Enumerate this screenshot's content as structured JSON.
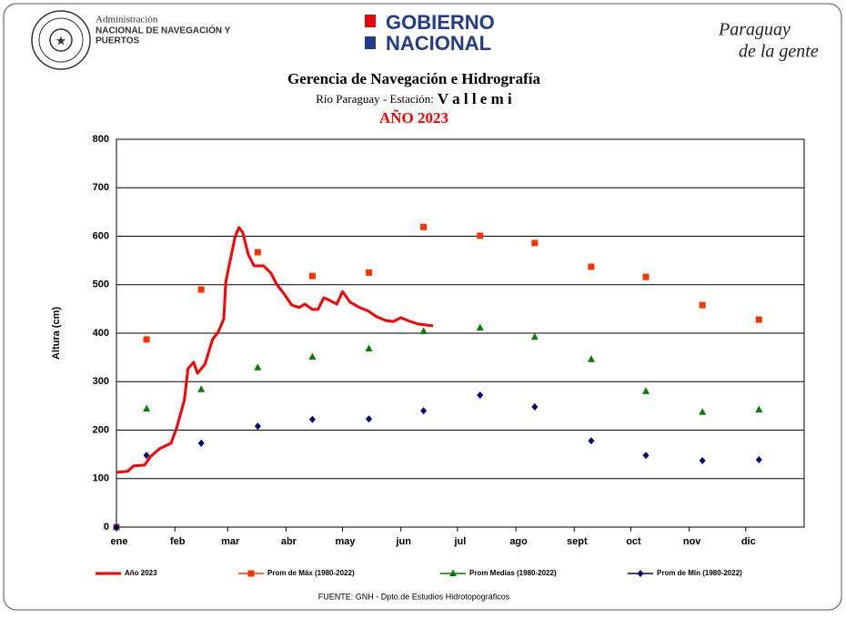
{
  "header": {
    "agency_line1": "Administración",
    "agency_line2": "NACIONAL DE NAVEGACIÓN Y",
    "agency_line3": "PUERTOS",
    "gov_line1": "GOBIERNO",
    "gov_line2": "NACIONAL",
    "slogan_line1": "Paraguay",
    "slogan_line2": "de la gente"
  },
  "chart_data": {
    "type": "line",
    "title": "Gerencia de Navegación e Hidrografía",
    "subtitle_prefix": "Río Paraguay  -  Estación:",
    "subtitle_station": "V a l l e m i",
    "year_title": "AÑO 2023",
    "y_label": "Altura (cm)",
    "source": "FUENTE: GNH - Dpto.de Estudios Hidrotopográficos",
    "xlim": [
      0,
      365
    ],
    "ylim": [
      0,
      800
    ],
    "xticks": [
      {
        "value": 0,
        "label": "ene"
      },
      {
        "value": 31,
        "label": "feb"
      },
      {
        "value": 59,
        "label": "mar"
      },
      {
        "value": 90,
        "label": "abr"
      },
      {
        "value": 120,
        "label": "may"
      },
      {
        "value": 151,
        "label": "jun"
      },
      {
        "value": 181,
        "label": "jul"
      },
      {
        "value": 212,
        "label": "ago"
      },
      {
        "value": 243,
        "label": "sept"
      },
      {
        "value": 273,
        "label": "oct"
      },
      {
        "value": 304,
        "label": "nov"
      },
      {
        "value": 334,
        "label": "dic"
      }
    ],
    "yticks": [
      0,
      100,
      200,
      300,
      400,
      500,
      600,
      700,
      800
    ],
    "grid": true,
    "series": [
      {
        "name": "Año 2023",
        "color": "#ff0000",
        "mode": "line",
        "x": [
          0,
          6,
          9,
          15,
          18,
          23,
          29,
          32,
          36,
          38,
          41,
          43,
          47,
          51,
          54,
          57,
          58,
          60,
          63,
          65,
          67,
          70,
          73,
          78,
          82,
          85,
          89,
          93,
          97,
          100,
          104,
          107,
          110,
          113,
          117,
          120,
          124,
          129,
          134,
          138,
          143,
          147,
          151,
          156,
          160,
          168
        ],
        "values": [
          113,
          115,
          126,
          128,
          145,
          162,
          173,
          205,
          261,
          327,
          340,
          317,
          336,
          387,
          402,
          430,
          505,
          543,
          599,
          618,
          608,
          562,
          539,
          539,
          524,
          501,
          481,
          458,
          453,
          460,
          449,
          449,
          473,
          468,
          460,
          486,
          464,
          453,
          445,
          434,
          426,
          424,
          432,
          424,
          419,
          415
        ]
      },
      {
        "name": "Prom de Máx (1980-2022)",
        "color": "#ff3300",
        "mode": "markers",
        "marker": "square",
        "x": [
          0,
          16,
          45,
          75,
          104,
          134,
          163,
          193,
          222,
          252,
          281,
          311,
          341
        ],
        "values": [
          0,
          387,
          490,
          567,
          518,
          525,
          619,
          601,
          586,
          537,
          516,
          458,
          428
        ]
      },
      {
        "name": "Prom Medias (1980-2022)",
        "color": "#008000",
        "mode": "markers",
        "marker": "triangle",
        "x": [
          0,
          16,
          45,
          75,
          104,
          134,
          163,
          193,
          222,
          252,
          281,
          311,
          341
        ],
        "values": [
          0,
          244,
          284,
          329,
          351,
          368,
          404,
          411,
          392,
          346,
          280,
          237,
          242
        ]
      },
      {
        "name": "Prom de Mín  (1980-2022)",
        "color": "#000080",
        "mode": "markers",
        "marker": "diamond",
        "x": [
          0,
          16,
          45,
          75,
          104,
          134,
          163,
          193,
          222,
          252,
          281,
          311,
          341
        ],
        "values": [
          0,
          148,
          173,
          208,
          222,
          223,
          240,
          272,
          248,
          178,
          148,
          137,
          139
        ]
      }
    ]
  }
}
